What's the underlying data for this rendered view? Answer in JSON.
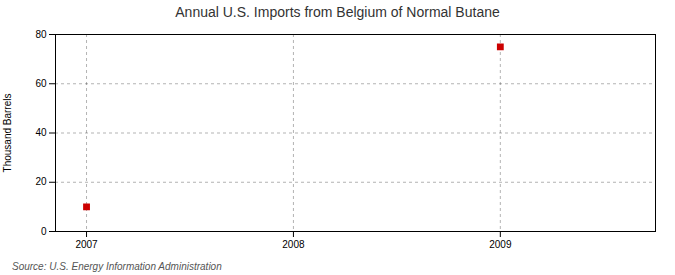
{
  "chart_data": {
    "type": "scatter",
    "title": "Annual U.S. Imports from Belgium of Normal Butane",
    "ylabel": "Thousand Barrels",
    "source": "Source: U.S. Energy Information Administration",
    "x": [
      2007,
      2009
    ],
    "values": [
      10,
      75
    ],
    "xlim": [
      2006.85,
      2009.75
    ],
    "ylim": [
      0,
      80
    ],
    "xticks": [
      2007,
      2008,
      2009
    ],
    "yticks": [
      0,
      20,
      40,
      60,
      80
    ],
    "grid": true,
    "color": "#cc0000",
    "marker": "square"
  }
}
